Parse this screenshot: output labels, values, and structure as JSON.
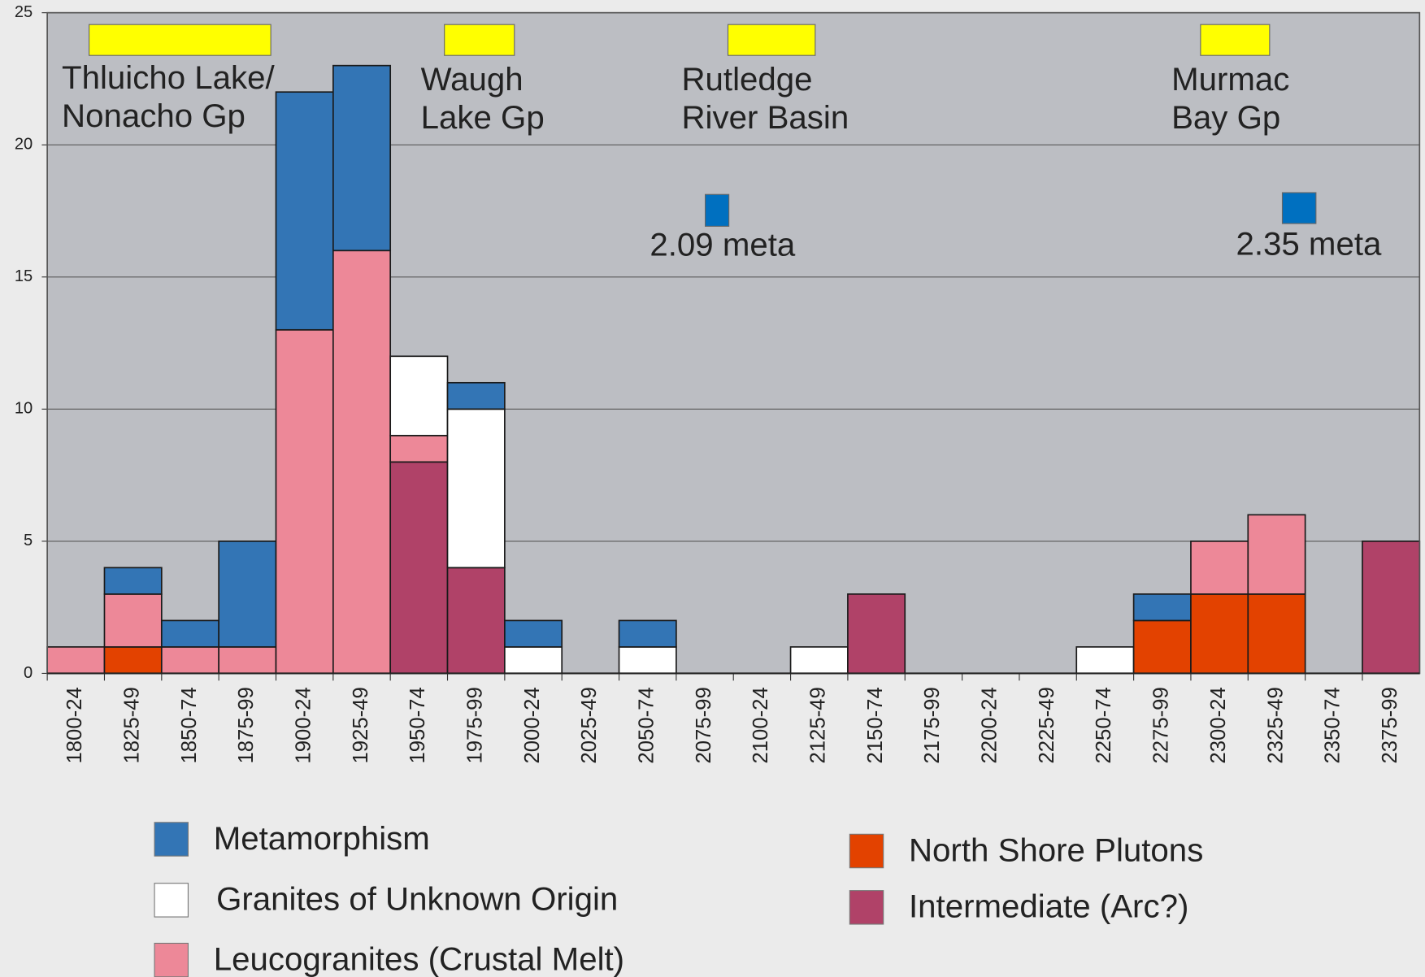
{
  "chart_data": {
    "type": "stacked-bar",
    "categories": [
      "1800-24",
      "1825-49",
      "1850-74",
      "1875-99",
      "1900-24",
      "1925-49",
      "1950-74",
      "1975-99",
      "2000-24",
      "2025-49",
      "2050-74",
      "2075-99",
      "2100-24",
      "2125-49",
      "2150-74",
      "2175-99",
      "2200-24",
      "2225-49",
      "2250-74",
      "2275-99",
      "2300-24",
      "2325-49",
      "2350-74",
      "2375-99"
    ],
    "series": [
      {
        "name": "North Shore Plutons",
        "color": "#e34200",
        "values": [
          0,
          1,
          0,
          0,
          0,
          0,
          0,
          0,
          0,
          0,
          0,
          0,
          0,
          0,
          0,
          0,
          0,
          0,
          0,
          2,
          3,
          3,
          0,
          0
        ]
      },
      {
        "name": "Intermediate (Arc?)",
        "color": "#b04268",
        "values": [
          0,
          0,
          0,
          0,
          0,
          0,
          8,
          4,
          0,
          0,
          0,
          0,
          0,
          0,
          3,
          0,
          0,
          0,
          0,
          0,
          0,
          0,
          0,
          5
        ]
      },
      {
        "name": "Leucogranites (Crustal Melt)",
        "color": "#ed8898",
        "values": [
          1,
          2,
          1,
          1,
          13,
          16,
          1,
          0,
          0,
          0,
          0,
          0,
          0,
          0,
          0,
          0,
          0,
          0,
          0,
          0,
          2,
          3,
          0,
          0
        ]
      },
      {
        "name": "Granites of Unknown Origin",
        "color": "#ffffff",
        "values": [
          0,
          0,
          0,
          0,
          0,
          0,
          3,
          6,
          1,
          0,
          1,
          0,
          0,
          1,
          0,
          0,
          0,
          0,
          1,
          0,
          0,
          0,
          0,
          0
        ]
      },
      {
        "name": "Metamorphism",
        "color": "#3375b5",
        "values": [
          0,
          1,
          1,
          4,
          9,
          7,
          0,
          1,
          1,
          0,
          1,
          0,
          0,
          0,
          0,
          0,
          0,
          0,
          0,
          1,
          0,
          0,
          0,
          0
        ]
      }
    ],
    "ylim": [
      0,
      25
    ],
    "yticks": [
      0,
      5,
      10,
      15,
      20,
      25
    ],
    "grid": true,
    "annotations": [
      {
        "text": [
          "Thluicho Lake/",
          "Nonacho Gp"
        ],
        "color": "#ffff00"
      },
      {
        "text": [
          "Waugh",
          "Lake Gp"
        ],
        "color": "#ffff00"
      },
      {
        "text": [
          "Rutledge",
          "River Basin"
        ],
        "color": "#ffff00"
      },
      {
        "text": [
          "Murmac",
          "Bay Gp"
        ],
        "color": "#ffff00"
      },
      {
        "text": [
          "2.09 meta"
        ],
        "color": "#0070c0"
      },
      {
        "text": [
          "2.35 meta"
        ],
        "color": "#0070c0"
      }
    ]
  }
}
